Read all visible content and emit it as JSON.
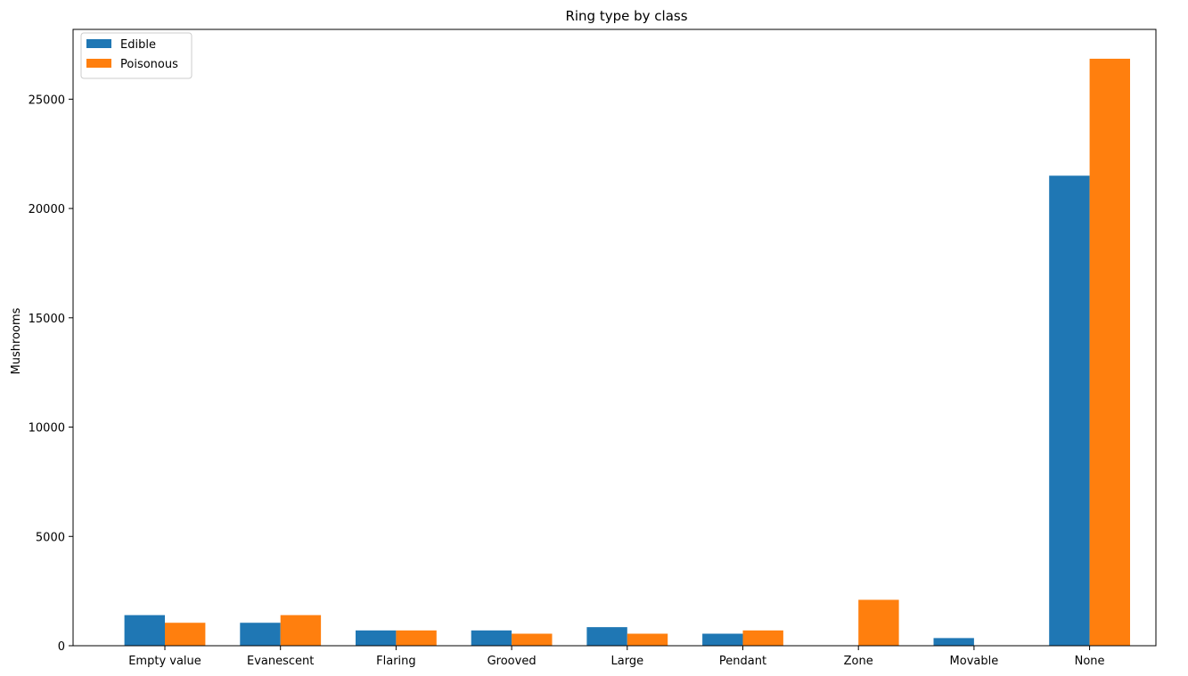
{
  "chart_data": {
    "type": "bar",
    "title": "Ring type by class",
    "xlabel": "",
    "ylabel": "Mushrooms",
    "categories": [
      "Empty value",
      "Evanescent",
      "Flaring",
      "Grooved",
      "Large",
      "Pendant",
      "Zone",
      "Movable",
      "None"
    ],
    "series": [
      {
        "name": "Edible",
        "color": "#1f77b4",
        "values": [
          1400,
          1050,
          700,
          700,
          850,
          550,
          0,
          350,
          21500
        ]
      },
      {
        "name": "Poisonous",
        "color": "#ff7f0e",
        "values": [
          1050,
          1400,
          700,
          550,
          550,
          700,
          2100,
          0,
          26850
        ]
      }
    ],
    "ylim": [
      0,
      28192
    ],
    "yticks": [
      0,
      5000,
      10000,
      15000,
      20000,
      25000
    ],
    "ytick_labels": [
      "0",
      "5000",
      "10000",
      "15000",
      "20000",
      "25000"
    ],
    "legend_position": "top-left",
    "grid": false
  }
}
